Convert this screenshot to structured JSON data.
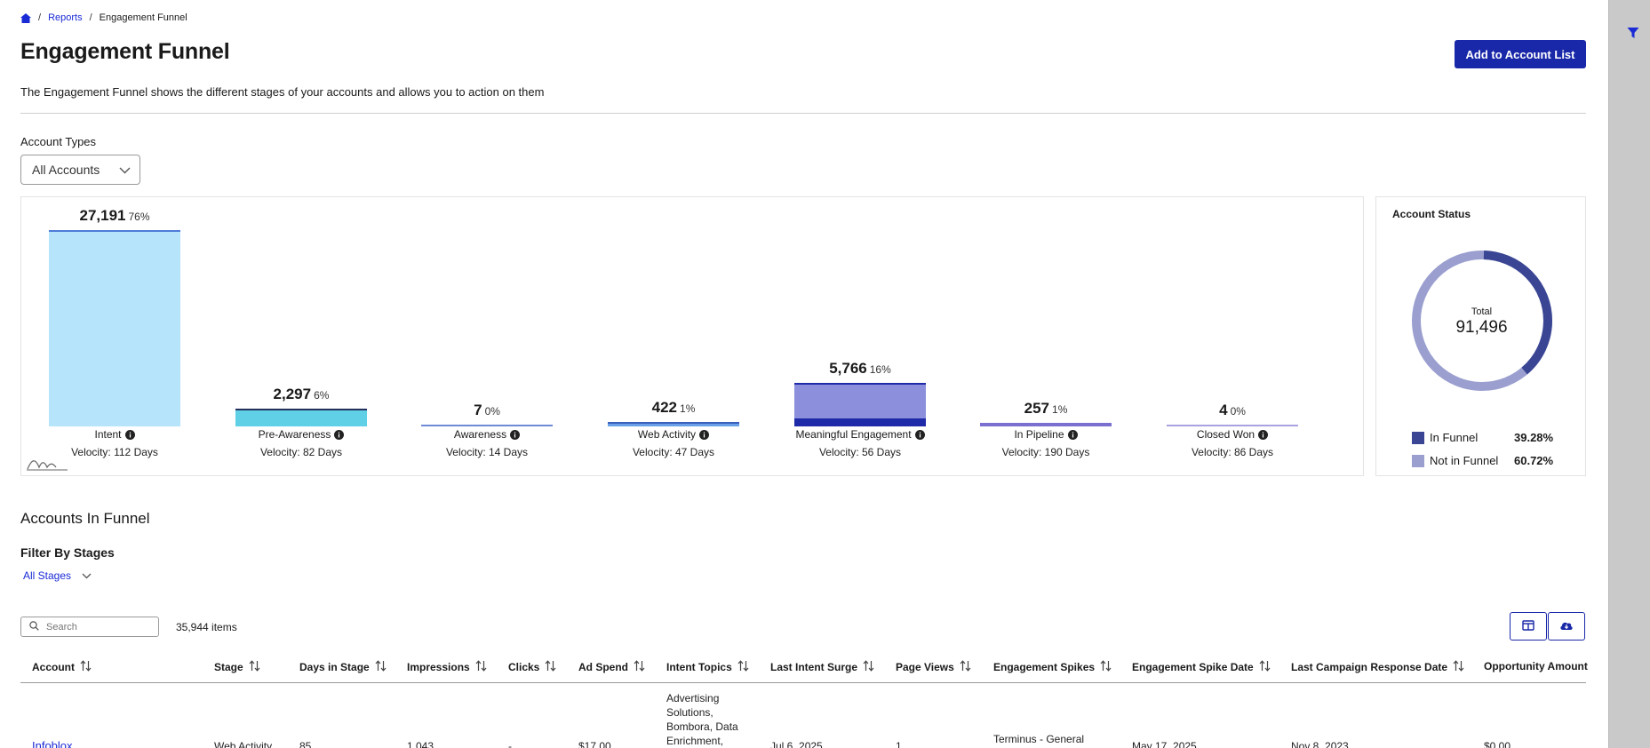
{
  "breadcrumb": {
    "home_icon": "home-icon",
    "reports": "Reports",
    "current": "Engagement Funnel"
  },
  "page": {
    "title": "Engagement Funnel",
    "description": "The Engagement Funnel shows the different stages of your accounts and allows you to action on them",
    "add_button": "Add to Account List"
  },
  "account_types": {
    "label": "Account Types",
    "selected": "All Accounts"
  },
  "funnel": {
    "stages": [
      {
        "name": "Intent",
        "count": "27,191",
        "pct": "76%",
        "velocity": "Velocity: 112 Days",
        "color": "#b6e4fb",
        "cap": "#4e7cd8"
      },
      {
        "name": "Pre-Awareness",
        "count": "2,297",
        "pct": "6%",
        "velocity": "Velocity: 82 Days",
        "color": "#5fd0e6",
        "cap": "#24305e"
      },
      {
        "name": "Awareness",
        "count": "7",
        "pct": "0%",
        "velocity": "Velocity: 14 Days",
        "color": "#6f8ad8",
        "cap": "#6f8ad8"
      },
      {
        "name": "Web Activity",
        "count": "422",
        "pct": "1%",
        "velocity": "Velocity: 47 Days",
        "color": "#6aa0e8",
        "cap": "#3a5fb8"
      },
      {
        "name": "Meaningful Engagement",
        "count": "5,766",
        "pct": "16%",
        "velocity": "Velocity: 56 Days",
        "color": "#8b8fdc",
        "cap": "#1f2aa8"
      },
      {
        "name": "In Pipeline",
        "count": "257",
        "pct": "1%",
        "velocity": "Velocity: 190 Days",
        "color": "#7b6fd0",
        "cap": "#7b6fd0"
      },
      {
        "name": "Closed Won",
        "count": "4",
        "pct": "0%",
        "velocity": "Velocity: 86 Days",
        "color": "#a9a2e0",
        "cap": "#a9a2e0"
      }
    ]
  },
  "account_status": {
    "title": "Account Status",
    "total_label": "Total",
    "total_value": "91,496",
    "legend": [
      {
        "name": "In Funnel",
        "pct": "39.28%",
        "fraction": 0.3928,
        "color": "#3a4694"
      },
      {
        "name": "Not in Funnel",
        "pct": "60.72%",
        "fraction": 0.6072,
        "color": "#9a9fcf"
      }
    ]
  },
  "accounts_section": {
    "title": "Accounts In Funnel",
    "filter_title": "Filter By Stages",
    "stages_selected": "All Stages",
    "search_placeholder": "Search",
    "items_count": "35,944 items"
  },
  "table": {
    "columns": [
      "Account",
      "Stage",
      "Days in Stage",
      "Impressions",
      "Clicks",
      "Ad Spend",
      "Intent Topics",
      "Last Intent Surge",
      "Page Views",
      "Engagement Spikes",
      "Engagement Spike Date",
      "Last Campaign Response Date",
      "Opportunity Amount"
    ],
    "rows": [
      {
        "account": "Infoblox",
        "stage": "Web Activity",
        "days": "85",
        "impressions": "1,043",
        "clicks": "-",
        "ad_spend": "$17.00",
        "intent_topics": "Advertising Solutions, Bombora, Data Enrichment,",
        "last_intent_surge": "Jul 6, 2025",
        "page_views": "1",
        "engagement_spikes": "Terminus - General",
        "spike_date": "May 17, 2025",
        "last_campaign": "Nov 8, 2023",
        "opportunity": "$0.00"
      }
    ]
  }
}
